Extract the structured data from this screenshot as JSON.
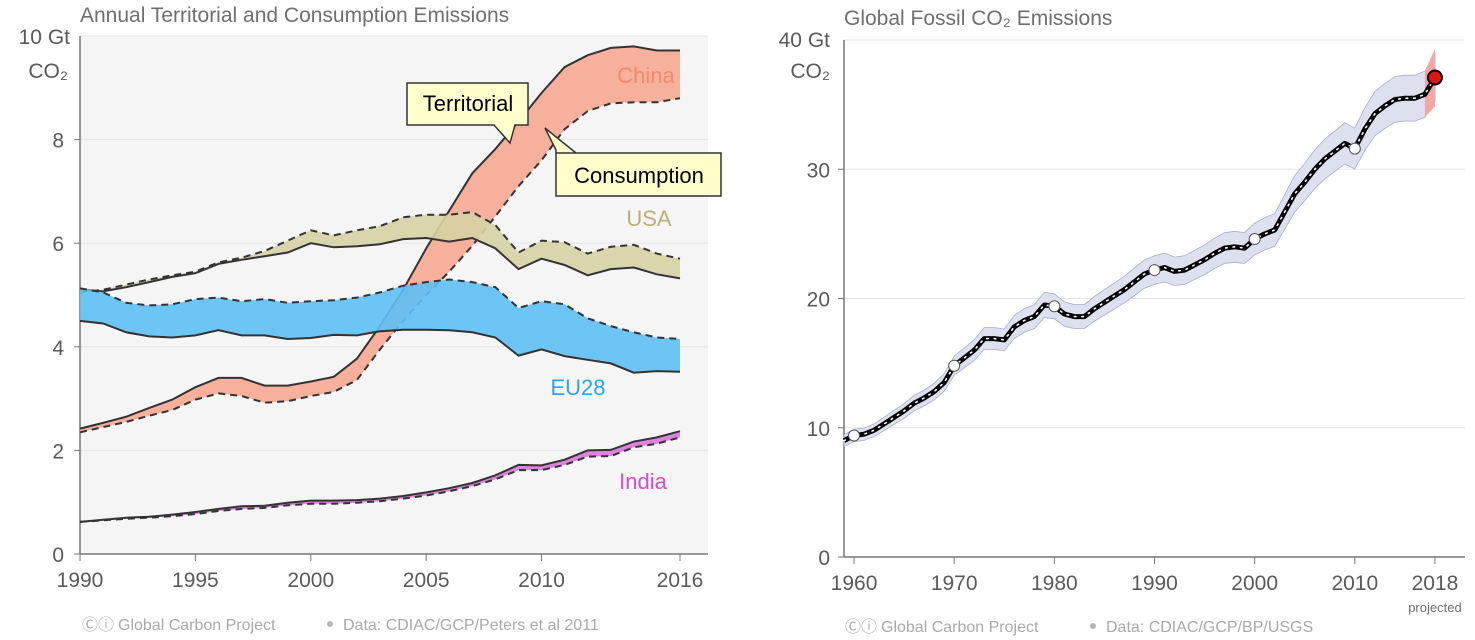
{
  "chart_data": [
    {
      "type": "line",
      "title": "Annual Territorial and Consumption Emissions",
      "unit_top": "10 Gt",
      "unit_bottom": "CO₂",
      "xlim": [
        1990,
        2016
      ],
      "ylim": [
        0,
        10
      ],
      "x_ticks": [
        "1990",
        "1995",
        "2000",
        "2005",
        "2010",
        "2016"
      ],
      "y_ticks": [
        "8",
        "6",
        "4",
        "2",
        "0"
      ],
      "x": [
        1990,
        1991,
        1992,
        1993,
        1994,
        1995,
        1996,
        1997,
        1998,
        1999,
        2000,
        2001,
        2002,
        2003,
        2004,
        2005,
        2006,
        2007,
        2008,
        2009,
        2010,
        2011,
        2012,
        2013,
        2014,
        2015,
        2016
      ],
      "series": [
        {
          "name": "China",
          "color": "#f7a992",
          "label_color": "#f08a6f",
          "territorial": [
            2.42,
            2.53,
            2.65,
            2.82,
            2.98,
            3.22,
            3.4,
            3.4,
            3.25,
            3.25,
            3.33,
            3.42,
            3.77,
            4.4,
            5.1,
            5.9,
            6.63,
            7.35,
            7.82,
            8.35,
            8.9,
            9.4,
            9.63,
            9.77,
            9.8,
            9.72,
            9.72
          ],
          "consumption": [
            2.35,
            2.45,
            2.55,
            2.67,
            2.78,
            2.98,
            3.1,
            3.05,
            2.92,
            2.95,
            3.05,
            3.13,
            3.36,
            3.95,
            4.5,
            5.0,
            5.45,
            5.95,
            6.52,
            7.1,
            7.6,
            8.2,
            8.55,
            8.7,
            8.72,
            8.72,
            8.8
          ]
        },
        {
          "name": "USA",
          "color": "#d6d1a4",
          "label_color": "#b8b076",
          "territorial": [
            5.1,
            5.07,
            5.15,
            5.25,
            5.35,
            5.42,
            5.6,
            5.68,
            5.75,
            5.82,
            6.0,
            5.92,
            5.94,
            5.98,
            6.08,
            6.1,
            6.03,
            6.1,
            5.9,
            5.5,
            5.7,
            5.58,
            5.38,
            5.5,
            5.53,
            5.4,
            5.32
          ],
          "consumption": [
            5.05,
            5.1,
            5.2,
            5.3,
            5.38,
            5.45,
            5.63,
            5.72,
            5.85,
            6.05,
            6.25,
            6.15,
            6.25,
            6.33,
            6.5,
            6.55,
            6.55,
            6.6,
            6.35,
            5.82,
            6.05,
            6.02,
            5.8,
            5.93,
            5.97,
            5.8,
            5.7
          ]
        },
        {
          "name": "EU28",
          "color": "#5ec0f5",
          "label_color": "#2aa4ea",
          "territorial": [
            4.5,
            4.45,
            4.28,
            4.2,
            4.18,
            4.22,
            4.32,
            4.22,
            4.22,
            4.15,
            4.17,
            4.23,
            4.22,
            4.3,
            4.33,
            4.33,
            4.32,
            4.28,
            4.18,
            3.83,
            3.95,
            3.82,
            3.75,
            3.68,
            3.5,
            3.53,
            3.52
          ],
          "consumption": [
            5.13,
            5.05,
            4.85,
            4.8,
            4.82,
            4.92,
            4.95,
            4.88,
            4.92,
            4.85,
            4.88,
            4.9,
            4.95,
            5.05,
            5.18,
            5.25,
            5.3,
            5.25,
            5.15,
            4.75,
            4.88,
            4.82,
            4.55,
            4.4,
            4.28,
            4.18,
            4.15
          ]
        },
        {
          "name": "India",
          "color": "#d977db",
          "label_color": "#d04ed0",
          "territorial": [
            0.62,
            0.66,
            0.7,
            0.72,
            0.76,
            0.81,
            0.87,
            0.92,
            0.93,
            0.99,
            1.03,
            1.03,
            1.04,
            1.07,
            1.12,
            1.19,
            1.27,
            1.37,
            1.52,
            1.72,
            1.71,
            1.82,
            2.0,
            2.01,
            2.17,
            2.25,
            2.37
          ],
          "consumption": [
            0.62,
            0.65,
            0.68,
            0.7,
            0.73,
            0.77,
            0.83,
            0.87,
            0.89,
            0.94,
            0.97,
            0.97,
            0.99,
            1.02,
            1.07,
            1.13,
            1.21,
            1.31,
            1.44,
            1.62,
            1.62,
            1.72,
            1.88,
            1.89,
            2.06,
            2.13,
            2.25
          ]
        }
      ],
      "annotations": [
        "Territorial",
        "Consumption"
      ],
      "footer_logo": "Ⓒⓘ",
      "footer": "Global Carbon Project",
      "footer_data": "Data: CDIAC/GCP/Peters et al 2011"
    },
    {
      "type": "line",
      "title": "Global Fossil CO₂ Emissions",
      "unit_top": "40 Gt",
      "unit_bottom": "CO₂",
      "xlim": [
        1959,
        2021
      ],
      "ylim": [
        0,
        40
      ],
      "x_ticks": [
        "1960",
        "1970",
        "1980",
        "1990",
        "2000",
        "2010",
        "2018"
      ],
      "x_tick_note": "projected",
      "y_ticks": [
        "30",
        "20",
        "10",
        "0"
      ],
      "x": [
        1959,
        1960,
        1961,
        1962,
        1963,
        1964,
        1965,
        1966,
        1967,
        1968,
        1969,
        1970,
        1971,
        1972,
        1973,
        1974,
        1975,
        1976,
        1977,
        1978,
        1979,
        1980,
        1981,
        1982,
        1983,
        1984,
        1985,
        1986,
        1987,
        1988,
        1989,
        1990,
        1991,
        1992,
        1993,
        1994,
        1995,
        1996,
        1997,
        1998,
        1999,
        2000,
        2001,
        2002,
        2003,
        2004,
        2005,
        2006,
        2007,
        2008,
        2009,
        2010,
        2011,
        2012,
        2013,
        2014,
        2015,
        2016,
        2017,
        2018
      ],
      "values": [
        9.0,
        9.4,
        9.5,
        9.8,
        10.3,
        10.8,
        11.3,
        11.9,
        12.3,
        12.8,
        13.5,
        14.8,
        15.4,
        16.0,
        16.9,
        16.9,
        16.8,
        17.8,
        18.3,
        18.6,
        19.5,
        19.4,
        18.8,
        18.6,
        18.6,
        19.2,
        19.7,
        20.2,
        20.7,
        21.3,
        21.9,
        22.2,
        22.4,
        22.1,
        22.2,
        22.6,
        23.0,
        23.5,
        23.9,
        24.0,
        23.9,
        24.6,
        25.0,
        25.3,
        26.7,
        28.1,
        29.0,
        30.0,
        30.8,
        31.4,
        32.0,
        31.6,
        33.1,
        34.3,
        34.9,
        35.4,
        35.5,
        35.5,
        35.8,
        37.1
      ],
      "uncertainty_fraction": 0.05,
      "highlight_x": [
        1960,
        1970,
        1980,
        1990,
        2000,
        2010
      ],
      "projected_x": 2018,
      "line_color": "#000000",
      "band_color": "#dde0ee",
      "projected_color": "#e31313",
      "projected_band_color": "#f4a6a6",
      "footer_logo": "Ⓒⓘ",
      "footer": "Global Carbon Project",
      "footer_data": "Data: CDIAC/GCP/BP/USGS"
    }
  ]
}
